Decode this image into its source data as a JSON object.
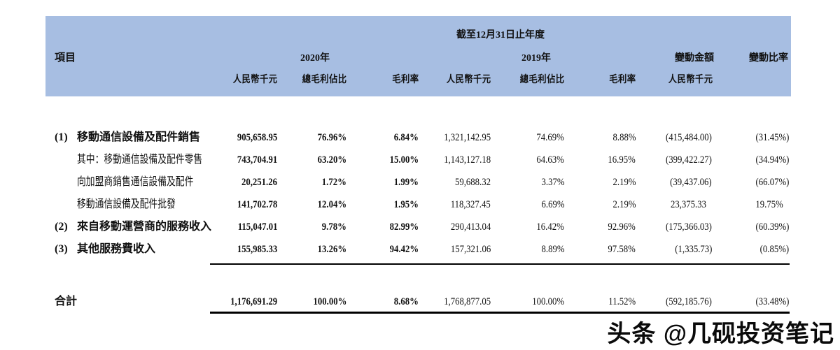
{
  "table": {
    "header": {
      "bg_color": "#a7bee2",
      "item_col": "項目",
      "period_title": "截至12月31日止年度",
      "group_2020": "2020年",
      "group_2019": "2019年",
      "change_amount": "變動金額",
      "change_ratio": "變動比率",
      "sub": [
        "人民幣千元",
        "總毛利佔比",
        "毛利率",
        "人民幣千元",
        "總毛利佔比",
        "毛利率",
        "人民幣千元"
      ]
    },
    "rows": [
      {
        "num": "(1)",
        "label": "移動通信設備及配件銷售",
        "values": [
          "905,658.95",
          "76.96%",
          "6.84%",
          "1,321,142.95",
          "74.69%",
          "8.88%",
          "(415,484.00)",
          "(31.45%)"
        ]
      },
      {
        "num": "",
        "label": "其中：移動通信設備及配件零售",
        "values": [
          "743,704.91",
          "63.20%",
          "15.00%",
          "1,143,127.18",
          "64.63%",
          "16.95%",
          "(399,422.27)",
          "(34.94%)"
        ]
      },
      {
        "num": "",
        "label": "向加盟商銷售通信設備及配件",
        "values": [
          "20,251.26",
          "1.72%",
          "1.99%",
          "59,688.32",
          "3.37%",
          "2.19%",
          "(39,437.06)",
          "(66.07%)"
        ]
      },
      {
        "num": "",
        "label": "移動通信設備及配件批發",
        "values": [
          "141,702.78",
          "12.04%",
          "1.95%",
          "118,327.45",
          "6.69%",
          "2.19%",
          "23,375.33",
          "19.75%"
        ]
      },
      {
        "num": "(2)",
        "label": "來自移動運營商的服務收入",
        "values": [
          "115,047.01",
          "9.78%",
          "82.99%",
          "290,413.04",
          "16.42%",
          "92.96%",
          "(175,366.03)",
          "(60.39%)"
        ]
      },
      {
        "num": "(3)",
        "label": "其他服務費收入",
        "values": [
          "155,985.33",
          "13.26%",
          "94.42%",
          "157,321.06",
          "8.89%",
          "97.58%",
          "(1,335.73)",
          "(0.85%)"
        ]
      }
    ],
    "total": {
      "label": "合計",
      "values": [
        "1,176,691.29",
        "100.00%",
        "8.68%",
        "1,768,877.05",
        "100.00%",
        "11.52%",
        "(592,185.76)",
        "(33.48%)"
      ]
    }
  },
  "watermark": {
    "text": "头条 @几砚投资笔记"
  }
}
